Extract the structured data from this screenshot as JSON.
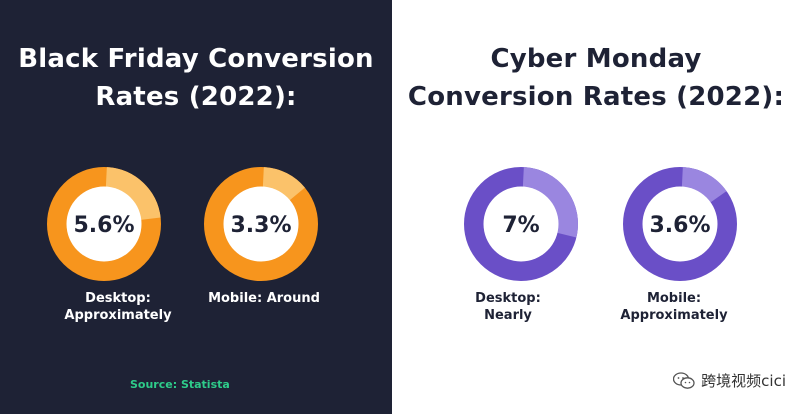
{
  "left_panel": {
    "title_lines": [
      "Black Friday Conversion",
      "Rates (2022):"
    ],
    "source": "Source: Statista"
  },
  "right_panel": {
    "title_lines": [
      "Cyber Monday",
      "Conversion Rates (2022):"
    ]
  },
  "watermark": {
    "text": "跨境视频cici",
    "icon": "wechat-icon"
  },
  "colors": {
    "dark_bg": "#1e2235",
    "orange": "#f7951d",
    "orange_light": "#fbc26a",
    "purple": "#6a4fc7",
    "purple_light": "#9a86e0",
    "source_green": "#2ecc8a"
  },
  "chart_data": [
    {
      "type": "pie",
      "title": "Black Friday Conversion Rates (2022):",
      "series": [
        {
          "name": "Desktop: Approximately",
          "value_label": "5.6%",
          "value": 5.6,
          "caption_lines": [
            "Desktop:",
            "Approximately"
          ],
          "color": "orange"
        },
        {
          "name": "Mobile: Around",
          "value_label": "3.3%",
          "value": 3.3,
          "caption_lines": [
            "Mobile: Around"
          ],
          "color": "orange"
        }
      ]
    },
    {
      "type": "pie",
      "title": "Cyber Monday Conversion Rates (2022):",
      "series": [
        {
          "name": "Desktop: Nearly",
          "value_label": "7%",
          "value": 7,
          "caption_lines": [
            "Desktop:",
            "Nearly"
          ],
          "color": "purple"
        },
        {
          "name": "Mobile: Approximately",
          "value_label": "3.6%",
          "value": 3.6,
          "caption_lines": [
            "Mobile:",
            "Approximately"
          ],
          "color": "purple"
        }
      ]
    }
  ]
}
